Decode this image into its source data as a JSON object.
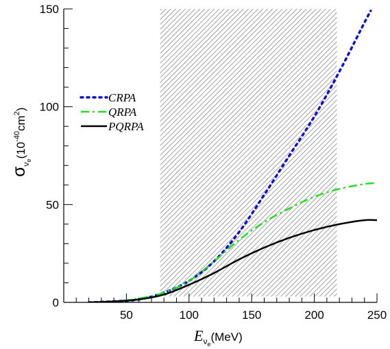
{
  "chart_data": {
    "type": "line",
    "title": "",
    "x_label": {
      "symbol": "E",
      "subscript": "ν",
      "subsubscript": "e",
      "unit": "(MeV)"
    },
    "y_label": {
      "symbol": "σ",
      "subscript": "ν",
      "subsubscript": "e",
      "unit_open": "(10",
      "exp1": "-40",
      "unit_mid": "cm",
      "exp2": "2",
      "unit_close": ")"
    },
    "xlim": [
      0,
      250
    ],
    "ylim": [
      0,
      150
    ],
    "x_ticks": [
      50,
      100,
      150,
      200,
      250
    ],
    "y_ticks": [
      0,
      50,
      100,
      150
    ],
    "grid": false,
    "legend_position": "left",
    "shaded_band": {
      "x_start": 77,
      "x_end": 218,
      "y_start": 3,
      "y_end": 150,
      "pattern": "diagonal-hatch",
      "color": "#888888"
    },
    "series": [
      {
        "name": "CRPA",
        "color": "#1010d0",
        "dash": "dotted",
        "x": [
          20,
          40,
          60,
          80,
          100,
          120,
          140,
          160,
          180,
          200,
          220,
          240,
          245
        ],
        "y": [
          0,
          0.5,
          1.5,
          5,
          11,
          21,
          36,
          55,
          75,
          95,
          118,
          143,
          149
        ]
      },
      {
        "name": "QRPA",
        "color": "#22dd22",
        "dash": "dashdot",
        "x": [
          20,
          40,
          60,
          80,
          100,
          120,
          140,
          160,
          180,
          200,
          220,
          240,
          250
        ],
        "y": [
          0,
          0.5,
          2,
          5,
          11,
          21,
          32,
          41,
          48,
          54,
          58,
          60.5,
          61
        ]
      },
      {
        "name": "PQRPA",
        "color": "#000000",
        "dash": "solid",
        "x": [
          20,
          40,
          60,
          80,
          100,
          120,
          140,
          160,
          180,
          200,
          220,
          240,
          250
        ],
        "y": [
          0,
          0.5,
          1.5,
          4,
          9,
          15,
          22,
          28,
          33,
          37,
          40,
          42,
          42
        ]
      }
    ]
  }
}
